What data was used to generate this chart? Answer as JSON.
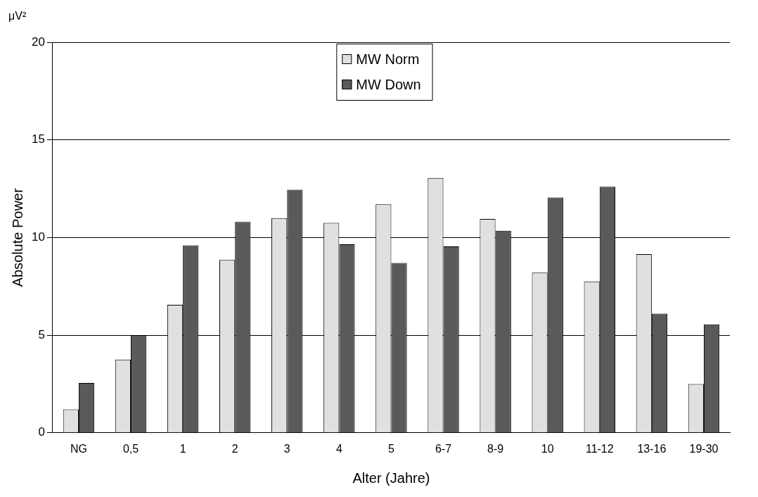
{
  "chart_data": {
    "type": "bar",
    "xlabel": "Alter (Jahre)",
    "ylabel": "Absolute Power",
    "annotations": [
      "μV²"
    ],
    "categories": [
      "NG",
      "0,5",
      "1",
      "2",
      "3",
      "4",
      "5",
      "6-7",
      "8-9",
      "10",
      "11-12",
      "13-16",
      "19-30"
    ],
    "series": [
      {
        "name": "MW Norm",
        "color": "#e0e0e0",
        "values": [
          1.2,
          3.75,
          6.55,
          8.85,
          11.0,
          10.75,
          11.7,
          13.05,
          10.95,
          8.2,
          7.75,
          9.15,
          2.5
        ]
      },
      {
        "name": "MW Down",
        "color": "#5a5a5a",
        "values": [
          2.55,
          5.0,
          9.6,
          10.8,
          12.45,
          9.65,
          8.7,
          9.55,
          10.35,
          12.05,
          12.6,
          6.1,
          5.55
        ]
      }
    ],
    "ylim": [
      0,
      20
    ],
    "yticks": [
      0,
      5,
      10,
      15,
      20
    ],
    "grid": "y",
    "legend": "top"
  }
}
